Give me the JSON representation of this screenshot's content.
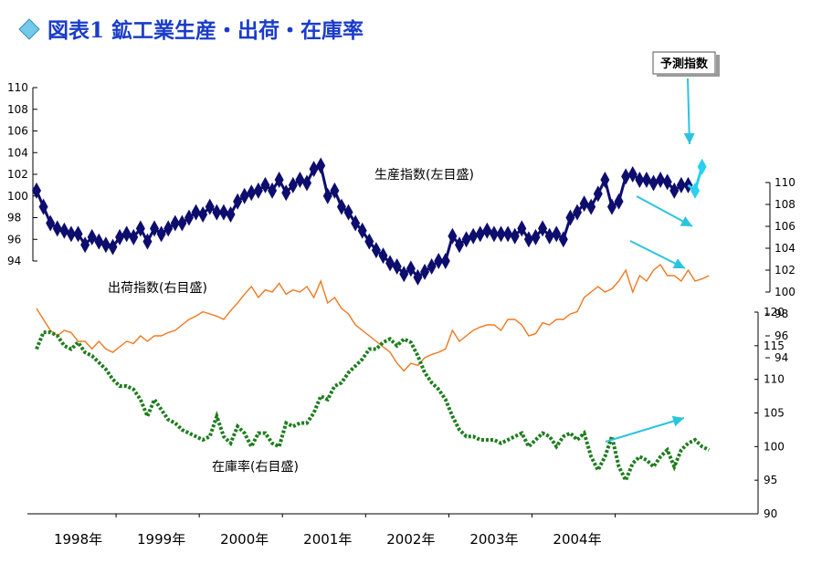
{
  "chart_data": {
    "type": "line",
    "title": "図表1 鉱工業生産・出荷・在庫率",
    "x_labels": [
      "1998年",
      "1999年",
      "2000年",
      "2001年",
      "2002年",
      "2003年",
      "2004年"
    ],
    "axes": {
      "production": {
        "ylim": [
          94,
          110
        ],
        "ticks": [
          94,
          96,
          98,
          100,
          102,
          104,
          106,
          108,
          110
        ]
      },
      "shipments": {
        "ylim": [
          94,
          110
        ],
        "ticks": [
          94,
          96,
          98,
          100,
          102,
          104,
          106,
          108,
          110
        ]
      },
      "inventory": {
        "ylim": [
          90,
          120
        ],
        "ticks": [
          90,
          95,
          100,
          105,
          110,
          115,
          120
        ]
      }
    },
    "series": [
      {
        "name": "生産指数(左目盛)",
        "axis": "production",
        "color": "#0d0d6e",
        "start_index": 0,
        "values": [
          100.5,
          99.0,
          97.5,
          97.0,
          96.8,
          96.5,
          96.5,
          95.5,
          96.2,
          95.8,
          95.5,
          95.3,
          96.2,
          96.5,
          96.2,
          97.0,
          95.8,
          97.0,
          96.5,
          97.0,
          97.5,
          97.5,
          98.0,
          98.5,
          98.3,
          99.0,
          98.5,
          98.5,
          98.3,
          99.5,
          100.0,
          100.3,
          100.5,
          101.0,
          100.5,
          101.5,
          100.3,
          101.0,
          101.5,
          101.2,
          102.5,
          102.8,
          100.0,
          100.5,
          99.0,
          98.5,
          97.5,
          96.8,
          95.8,
          95.0,
          94.5,
          93.8,
          93.5,
          92.8,
          93.3,
          92.5,
          93.0,
          93.5,
          94.0,
          94.0,
          96.3,
          95.5,
          96.0,
          96.3,
          96.5,
          96.8,
          96.5,
          96.5,
          96.5,
          96.3,
          97.0,
          96.0,
          96.2,
          97.0,
          96.3,
          96.5,
          96.0,
          98.0,
          98.5,
          99.3,
          99.0,
          100.2,
          101.5,
          99.0,
          99.5,
          101.8,
          102.0,
          101.5,
          101.5,
          101.2,
          101.5,
          101.3,
          100.5,
          101.0,
          101.0
        ],
        "forecast": {
          "color": "#2ad0f0",
          "start_index": 95,
          "values": [
            100.5,
            102.7
          ]
        }
      },
      {
        "name": "出荷指数(右目盛)",
        "axis": "shipments",
        "color": "#f07820",
        "start_index": 0,
        "values": [
          98.5,
          97.5,
          96.5,
          96.0,
          96.5,
          96.3,
          95.5,
          95.5,
          94.8,
          95.5,
          94.8,
          94.5,
          95.0,
          95.5,
          95.3,
          96.0,
          95.5,
          96.0,
          96.0,
          96.3,
          96.5,
          97.0,
          97.5,
          97.8,
          98.2,
          98.0,
          97.8,
          97.5,
          98.3,
          99.0,
          99.8,
          100.5,
          99.5,
          100.2,
          100.0,
          100.8,
          99.8,
          100.2,
          100.0,
          100.5,
          99.5,
          101.0,
          99.0,
          99.5,
          98.5,
          98.0,
          97.0,
          96.5,
          96.0,
          95.5,
          95.0,
          94.5,
          93.5,
          92.8,
          93.5,
          93.3,
          94.0,
          94.3,
          94.5,
          94.8,
          96.5,
          95.5,
          96.0,
          96.5,
          96.8,
          97.0,
          97.0,
          96.5,
          97.5,
          97.5,
          97.0,
          96.0,
          96.2,
          97.2,
          97.0,
          97.5,
          97.5,
          98.0,
          98.2,
          99.5,
          100.0,
          100.5,
          100.0,
          100.3,
          101.0,
          102.0,
          100.0,
          101.5,
          101.0,
          102.0,
          102.5,
          101.5,
          101.5,
          101.0,
          102.0,
          101.0,
          101.2,
          101.5
        ]
      },
      {
        "name": "在庫率(右目盛)",
        "axis": "inventory",
        "color": "#1e7d1e",
        "start_index": 0,
        "values": [
          114.5,
          117.0,
          117.0,
          116.5,
          115.0,
          114.5,
          115.5,
          114.0,
          113.5,
          112.5,
          111.5,
          110.0,
          109.0,
          109.0,
          108.5,
          107.0,
          104.5,
          107.0,
          105.5,
          104.0,
          103.5,
          102.5,
          102.0,
          101.5,
          101.0,
          101.5,
          104.5,
          101.5,
          100.5,
          103.0,
          102.0,
          100.0,
          102.0,
          102.0,
          100.5,
          100.0,
          103.5,
          103.0,
          103.5,
          103.5,
          105.0,
          107.5,
          107.0,
          109.0,
          109.5,
          111.0,
          112.0,
          113.0,
          114.5,
          114.5,
          115.5,
          116.0,
          115.0,
          116.0,
          115.5,
          113.5,
          111.0,
          109.5,
          108.5,
          107.0,
          104.5,
          102.5,
          101.5,
          101.5,
          101.0,
          101.0,
          101.0,
          100.5,
          101.0,
          101.5,
          102.0,
          100.0,
          101.0,
          102.0,
          101.5,
          100.0,
          101.5,
          102.0,
          101.0,
          102.0,
          98.5,
          96.5,
          98.5,
          101.5,
          97.0,
          95.0,
          97.5,
          98.5,
          98.0,
          97.0,
          98.5,
          99.5,
          97.0,
          99.5,
          100.5,
          101.0,
          100.0,
          99.5
        ]
      }
    ],
    "annotations": {
      "forecast_label": "予測指数",
      "trend_arrows": [
        {
          "series": "生産指数(左目盛)",
          "direction": "down"
        },
        {
          "series": "出荷指数(右目盛)",
          "direction": "down"
        },
        {
          "series": "在庫率(右目盛)",
          "direction": "up"
        }
      ]
    }
  },
  "colors": {
    "title": "#1a3cc8",
    "arrow": "#2ac4e0",
    "axis": "#000000"
  },
  "icons": {
    "title_bullet": "diamond-icon"
  }
}
